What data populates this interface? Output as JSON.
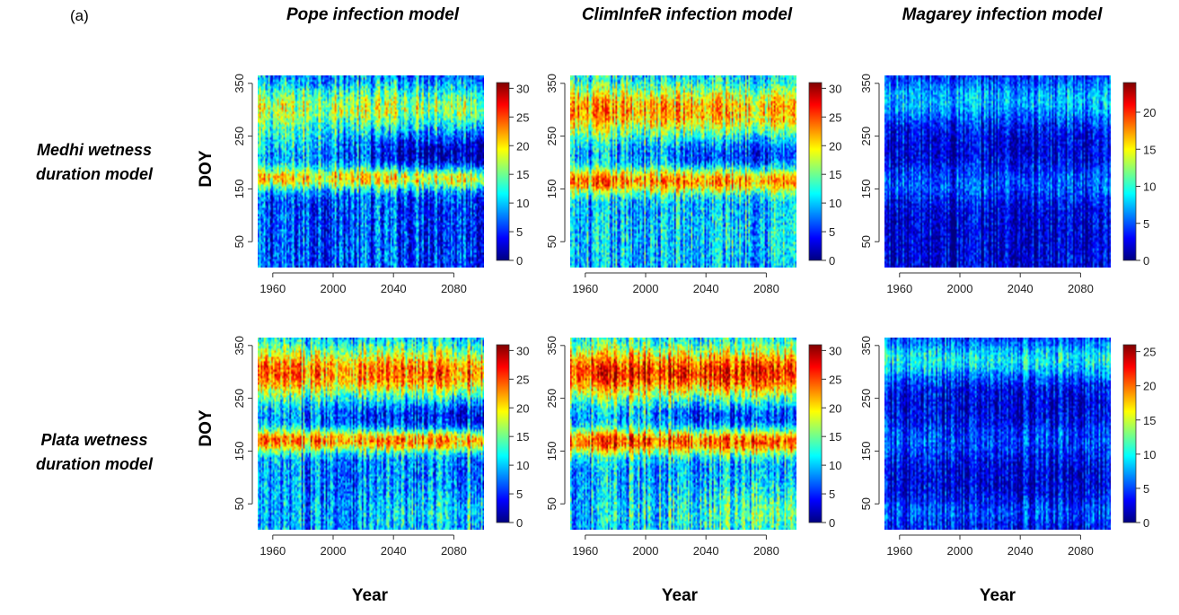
{
  "panel_label": "(a)",
  "column_titles": [
    "Pope infection model",
    "ClimInfeR infection model",
    "Magarey infection model"
  ],
  "row_titles": [
    [
      "Medhi wetness",
      "duration model"
    ],
    [
      "Plata wetness",
      "duration model"
    ]
  ],
  "y_axis_title": "DOY",
  "x_axis_title": "Year",
  "colormap": [
    "#00007f",
    "#0000ff",
    "#007fff",
    "#00ffff",
    "#7fff7f",
    "#ffff00",
    "#ff7f00",
    "#ff0000",
    "#7f0000"
  ],
  "chart_data": [
    {
      "type": "heatmap",
      "title": "",
      "row": "Medhi wetness duration model",
      "column": "Pope infection model",
      "xlabel": "",
      "ylabel": "DOY",
      "x_range": [
        1950,
        2100
      ],
      "y_range": [
        1,
        365
      ],
      "x_ticks": [
        1960,
        2000,
        2040,
        2080
      ],
      "y_ticks": [
        50,
        150,
        250,
        350
      ],
      "colorbar_ticks": [
        0,
        5,
        10,
        15,
        20,
        25,
        30
      ],
      "colorbar_range": [
        0,
        31
      ],
      "pattern": "pope"
    },
    {
      "type": "heatmap",
      "title": "",
      "row": "Medhi wetness duration model",
      "column": "ClimInfeR infection model",
      "xlabel": "",
      "ylabel": "",
      "x_range": [
        1950,
        2100
      ],
      "y_range": [
        1,
        365
      ],
      "x_ticks": [
        1960,
        2000,
        2040,
        2080
      ],
      "y_ticks": [
        50,
        150,
        250,
        350
      ],
      "colorbar_ticks": [
        0,
        5,
        10,
        15,
        20,
        25,
        30
      ],
      "colorbar_range": [
        0,
        31
      ],
      "pattern": "climinfer"
    },
    {
      "type": "heatmap",
      "title": "",
      "row": "Medhi wetness duration model",
      "column": "Magarey infection model",
      "xlabel": "",
      "ylabel": "",
      "x_range": [
        1950,
        2100
      ],
      "y_range": [
        1,
        365
      ],
      "x_ticks": [
        1960,
        2000,
        2040,
        2080
      ],
      "y_ticks": [
        50,
        150,
        250,
        350
      ],
      "colorbar_ticks": [
        0,
        5,
        10,
        15,
        20
      ],
      "colorbar_range": [
        0,
        24
      ],
      "pattern": "magarey"
    },
    {
      "type": "heatmap",
      "title": "",
      "row": "Plata wetness duration model",
      "column": "Pope infection model",
      "xlabel": "Year",
      "ylabel": "DOY",
      "x_range": [
        1950,
        2100
      ],
      "y_range": [
        1,
        365
      ],
      "x_ticks": [
        1960,
        2000,
        2040,
        2080
      ],
      "y_ticks": [
        50,
        150,
        250,
        350
      ],
      "colorbar_ticks": [
        0,
        5,
        10,
        15,
        20,
        25,
        30
      ],
      "colorbar_range": [
        0,
        31
      ],
      "pattern": "pope_plata"
    },
    {
      "type": "heatmap",
      "title": "",
      "row": "Plata wetness duration model",
      "column": "ClimInfeR infection model",
      "xlabel": "Year",
      "ylabel": "",
      "x_range": [
        1950,
        2100
      ],
      "y_range": [
        1,
        365
      ],
      "x_ticks": [
        1960,
        2000,
        2040,
        2080
      ],
      "y_ticks": [
        50,
        150,
        250,
        350
      ],
      "colorbar_ticks": [
        0,
        5,
        10,
        15,
        20,
        25,
        30
      ],
      "colorbar_range": [
        0,
        31
      ],
      "pattern": "climinfer_plata"
    },
    {
      "type": "heatmap",
      "title": "",
      "row": "Plata wetness duration model",
      "column": "Magarey infection model",
      "xlabel": "Year",
      "ylabel": "",
      "x_range": [
        1950,
        2100
      ],
      "y_range": [
        1,
        365
      ],
      "x_ticks": [
        1960,
        2000,
        2040,
        2080
      ],
      "y_ticks": [
        50,
        150,
        250,
        350
      ],
      "colorbar_ticks": [
        0,
        5,
        10,
        15,
        20,
        25
      ],
      "colorbar_range": [
        0,
        26
      ],
      "pattern": "magarey_plata"
    }
  ]
}
